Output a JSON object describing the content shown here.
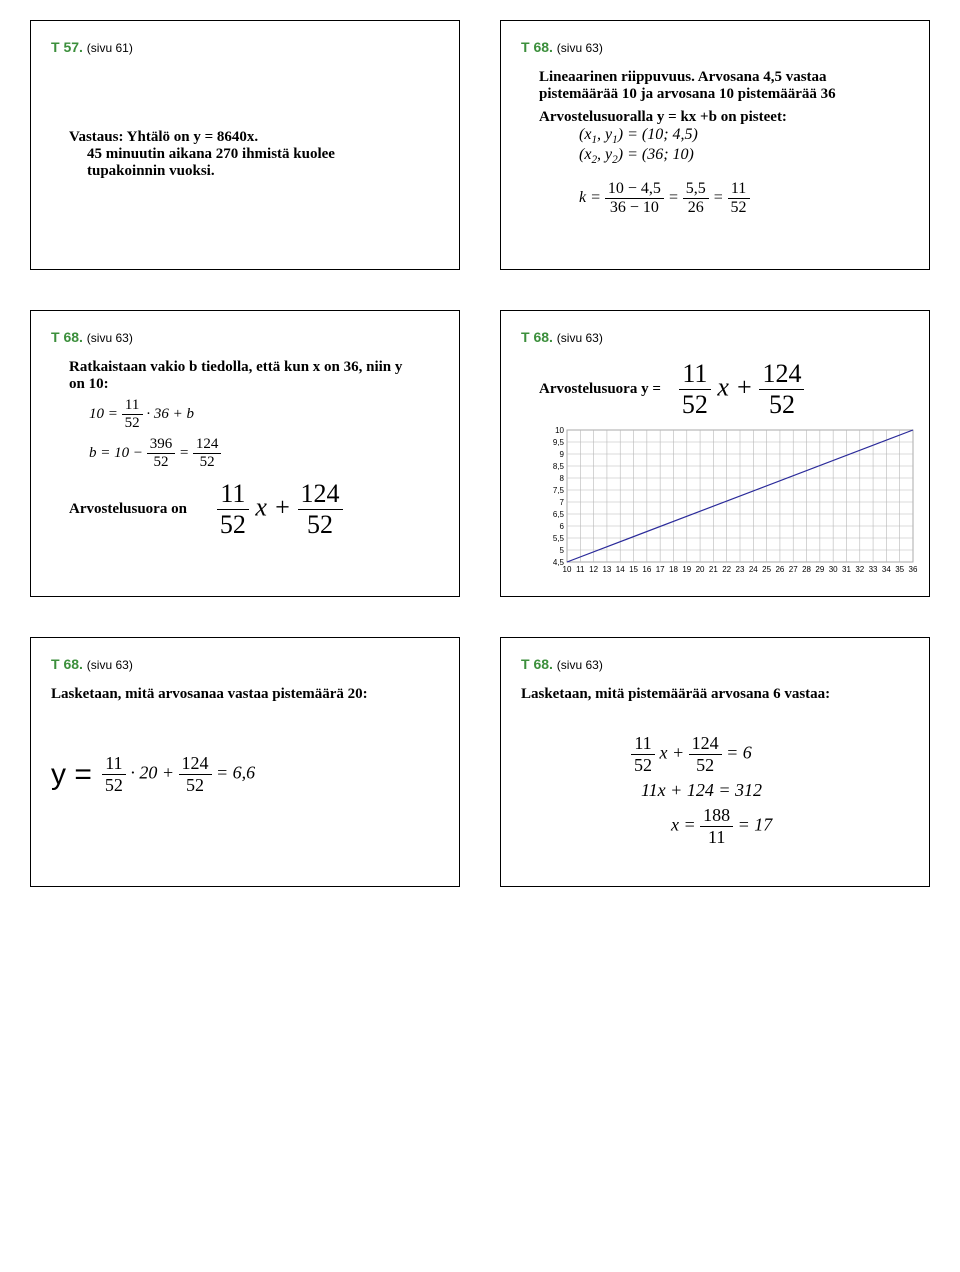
{
  "panels": {
    "p1": {
      "tnum": "T 57.",
      "pgref": "(sivu 61)",
      "l1": "Vastaus: Yhtälö on y = 8640x.",
      "l2": "45 minuutin aikana 270 ihmistä kuolee tupakoinnin vuoksi."
    },
    "p2": {
      "tnum": "T 68.",
      "pgref": "(sivu 63)",
      "l1": "Lineaarinen riippuvuus. Arvosana 4,5 vastaa pistemäärää 10 ja arvosana 10 pistemäärää 36",
      "l2": "Arvostelusuoralla y = kx +b on pisteet:",
      "pt1": "(x₁, y₁) = (10; 4,5)",
      "pt2": "(x₂, y₂) = (36; 10)",
      "k_eq": {
        "lhs": "k =",
        "f1n": "10 − 4,5",
        "f1d": "36 − 10",
        "f2n": "5,5",
        "f2d": "26",
        "f3n": "11",
        "f3d": "52"
      }
    },
    "p3": {
      "tnum": "T 68.",
      "pgref": "(sivu 63)",
      "l1": "Ratkaistaan vakio b tiedolla, että kun x on 36, niin y on 10:",
      "e1": {
        "pre": "10 =",
        "fn": "11",
        "fd": "52",
        "post": "· 36 + b"
      },
      "e2": {
        "pre": "b = 10 −",
        "f1n": "396",
        "f1d": "52",
        "eq": "=",
        "f2n": "124",
        "f2d": "52"
      },
      "l2": "Arvostelusuora on",
      "bigfrac": {
        "f1n": "11",
        "f1d": "52",
        "mid": "x +",
        "f2n": "124",
        "f2d": "52"
      }
    },
    "p4": {
      "tnum": "T 68.",
      "pgref": "(sivu 63)",
      "l1": "Arvostelusuora y =",
      "bigfrac": {
        "f1n": "11",
        "f1d": "52",
        "mid": "x +",
        "f2n": "124",
        "f2d": "52"
      },
      "chart": {
        "type": "line",
        "y_ticks": [
          4.5,
          5,
          5.5,
          6,
          6.5,
          7,
          7.5,
          8,
          8.5,
          9,
          9.5,
          10
        ],
        "x_ticks": [
          10,
          11,
          12,
          13,
          14,
          15,
          16,
          17,
          18,
          19,
          20,
          21,
          22,
          23,
          24,
          25,
          26,
          27,
          28,
          29,
          30,
          31,
          32,
          33,
          34,
          35,
          36
        ],
        "line_points": [
          [
            10,
            4.5
          ],
          [
            36,
            10
          ]
        ],
        "grid_color": "#b8b8b8",
        "line_color": "#2a2a9a",
        "background": "#ffffff",
        "xlim": [
          10,
          36
        ],
        "ylim": [
          4.5,
          10
        ]
      }
    },
    "p5": {
      "tnum": "T 68.",
      "pgref": "(sivu 63)",
      "l1": "Lasketaan, mitä arvosanaa vastaa pistemäärä 20:",
      "eq": {
        "pre": "y =",
        "f1n": "11",
        "f1d": "52",
        "mid1": "· 20 +",
        "f2n": "124",
        "f2d": "52",
        "post": "= 6,6"
      }
    },
    "p6": {
      "tnum": "T 68.",
      "pgref": "(sivu 63)",
      "l1": "Lasketaan, mitä pistemäärää arvosana 6 vastaa:",
      "e1": {
        "f1n": "11",
        "f1d": "52",
        "mid": "x +",
        "f2n": "124",
        "f2d": "52",
        "post": "= 6"
      },
      "e2": "11x + 124 = 312",
      "e3": {
        "pre": "x =",
        "fn": "188",
        "fd": "11",
        "post": "= 17"
      }
    }
  }
}
